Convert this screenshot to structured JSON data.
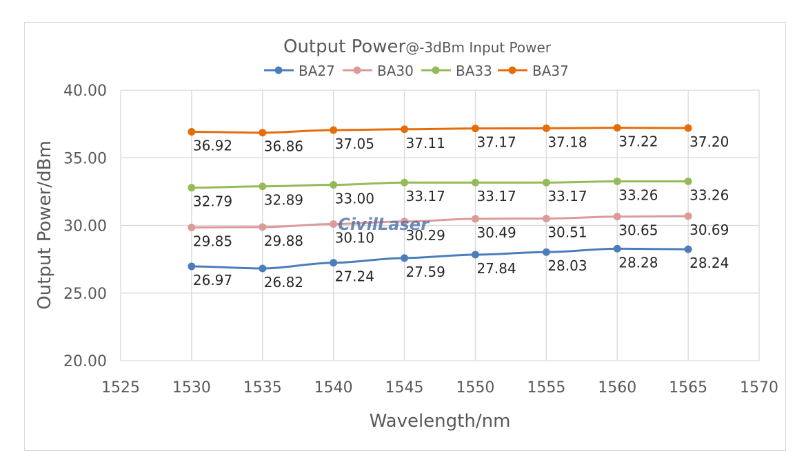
{
  "chart_data": {
    "type": "line",
    "title": "Output Power",
    "subtitle": "@-3dBm Input Power",
    "xlabel": "Wavelength/nm",
    "ylabel": "Output Power/dBm",
    "xlim": [
      1525,
      1570
    ],
    "ylim": [
      20,
      40
    ],
    "xticks": [
      "1525",
      "1530",
      "1535",
      "1540",
      "1545",
      "1550",
      "1555",
      "1560",
      "1565",
      "1570"
    ],
    "yticks": [
      "20.00",
      "25.00",
      "30.00",
      "35.00",
      "40.00"
    ],
    "grid": true,
    "legend_position": "top",
    "x": [
      1530,
      1535,
      1540,
      1545,
      1550,
      1555,
      1560,
      1565
    ],
    "series": [
      {
        "name": "BA27",
        "color": "#4a7ebb",
        "values": [
          26.97,
          26.82,
          27.24,
          27.59,
          27.84,
          28.03,
          28.28,
          28.24
        ],
        "labels": [
          "26.97",
          "26.82",
          "27.24",
          "27.59",
          "27.84",
          "28.03",
          "28.28",
          "28.24"
        ]
      },
      {
        "name": "BA30",
        "color": "#dc9a98",
        "values": [
          29.85,
          29.88,
          30.1,
          30.29,
          30.49,
          30.51,
          30.65,
          30.69
        ],
        "labels": [
          "29.85",
          "29.88",
          "30.10",
          "30.29",
          "30.49",
          "30.51",
          "30.65",
          "30.69"
        ]
      },
      {
        "name": "BA33",
        "color": "#93bb57",
        "values": [
          32.79,
          32.89,
          33.0,
          33.17,
          33.17,
          33.17,
          33.26,
          33.26
        ],
        "labels": [
          "32.79",
          "32.89",
          "33.00",
          "33.17",
          "33.17",
          "33.17",
          "33.26",
          "33.26"
        ]
      },
      {
        "name": "BA37",
        "color": "#e46c0a",
        "values": [
          36.92,
          36.86,
          37.05,
          37.11,
          37.17,
          37.18,
          37.22,
          37.2
        ],
        "labels": [
          "36.92",
          "36.86",
          "37.05",
          "37.11",
          "37.17",
          "37.18",
          "37.22",
          "37.20"
        ]
      }
    ],
    "watermark": "CivilLaser"
  }
}
